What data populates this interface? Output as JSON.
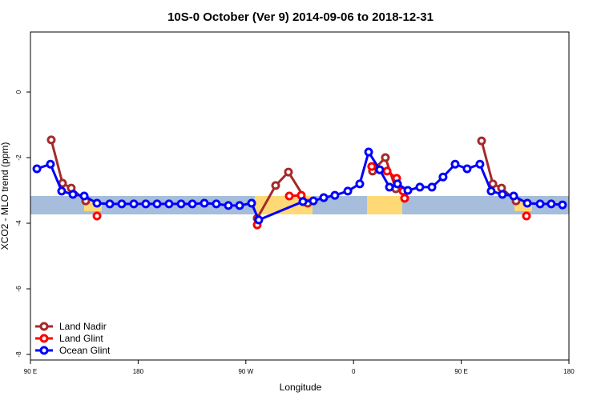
{
  "chart_data": {
    "type": "line",
    "title": "10S-0 October (Ver 9)   2014-09-06 to 2018-12-31",
    "xlabel": "Longitude",
    "ylabel": "XCO2 - MLO trend (ppm)",
    "xlim": [
      90,
      540
    ],
    "ylim": [
      -8.17,
      1.83
    ],
    "xticks": [
      {
        "value": 90,
        "label": "90 E"
      },
      180,
      {
        "value": 270,
        "label": "90 W"
      },
      {
        "value": 360,
        "label": "0"
      },
      {
        "value": 450,
        "label": "90 E"
      },
      {
        "value": 540,
        "label": "180"
      }
    ],
    "yticks": [
      0,
      -2,
      -4,
      -6,
      -8
    ],
    "legend": "bottom-left",
    "series": [
      {
        "name": "Land Nadir",
        "color": "#a52a2a",
        "x": [
          107.4,
          116.8,
          124.1,
          136.2,
          null,
          279.5,
          294.9,
          305.6,
          321.7,
          null,
          375.9,
          386.6,
          395.3,
          null,
          467.0,
          476.4,
          483.7,
          495.8
        ],
        "values": [
          -1.46,
          -2.78,
          -2.93,
          -3.32,
          null,
          -3.85,
          -2.85,
          -2.44,
          -3.39,
          null,
          -2.41,
          -2.0,
          -2.95,
          null,
          -1.49,
          -2.8,
          -2.93,
          -3.32
        ]
      },
      {
        "name": "Land Glint",
        "color": "#ff0000",
        "x": [
          145.6,
          null,
          279.5,
          null,
          306.3,
          316.3,
          null,
          375.2,
          388.0,
          396.0,
          401.4,
          402.7,
          null,
          504.5
        ],
        "values": [
          -3.78,
          null,
          -4.05,
          null,
          -3.17,
          -3.15,
          null,
          -2.27,
          -2.41,
          -2.63,
          -3.02,
          -3.24,
          null,
          -3.78
        ]
      },
      {
        "name": "Ocean Glint",
        "color": "#0000ff",
        "x": [
          95.4,
          106.7,
          116.1,
          125.5,
          134.9,
          145.6,
          156.3,
          166.3,
          176.4,
          186.4,
          195.8,
          205.8,
          215.9,
          225.3,
          235.3,
          245.3,
          255.4,
          264.8,
          274.8,
          280.8,
          317.7,
          326.4,
          335.1,
          344.4,
          355.2,
          365.2,
          372.6,
          381.9,
          390.0,
          396.7,
          405.4,
          415.4,
          425.5,
          434.8,
          444.9,
          454.9,
          465.6,
          475.0,
          484.4,
          493.8,
          505.2,
          515.9,
          525.2,
          534.6
        ],
        "values": [
          -2.34,
          -2.2,
          -3.02,
          -3.12,
          -3.17,
          -3.39,
          -3.41,
          -3.41,
          -3.41,
          -3.41,
          -3.41,
          -3.41,
          -3.41,
          -3.41,
          -3.39,
          -3.41,
          -3.46,
          -3.46,
          -3.39,
          -3.9,
          -3.34,
          -3.32,
          -3.22,
          -3.15,
          -3.02,
          -2.8,
          -1.83,
          -2.37,
          -2.9,
          -2.8,
          -3.0,
          -2.9,
          -2.9,
          -2.59,
          -2.2,
          -2.34,
          -2.2,
          -3.02,
          -3.12,
          -3.17,
          -3.39,
          -3.41,
          -3.41,
          -3.44
        ]
      }
    ]
  }
}
